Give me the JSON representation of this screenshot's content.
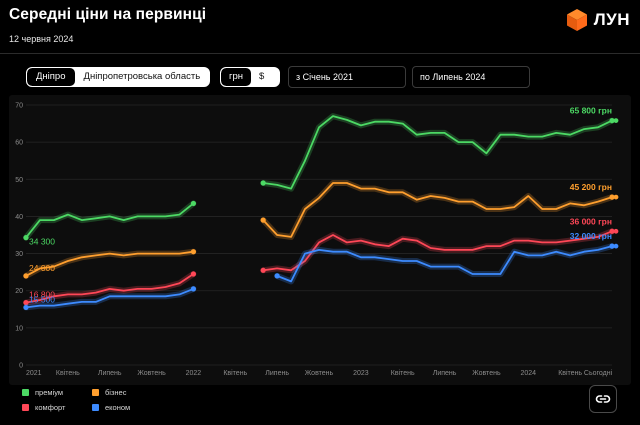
{
  "header": {
    "title": "Середні ціни на первинці",
    "date": "12 червня 2024",
    "logo_text": "ЛУН"
  },
  "controls": {
    "city_options": [
      "Дніпро",
      "Дніпропетровська область"
    ],
    "currency_options": [
      "грн",
      "$"
    ],
    "date_from": "з  Січень 2021",
    "date_to": "по  Липень 2024"
  },
  "chart_data": {
    "type": "line",
    "y_axis": {
      "min": 0,
      "max": 70,
      "ticks": [
        0,
        10,
        20,
        30,
        40,
        50,
        60,
        70
      ]
    },
    "x_axis": {
      "ticks": [
        {
          "label": "2021",
          "x": 0
        },
        {
          "label": "Квітень",
          "x": 3
        },
        {
          "label": "Липень",
          "x": 6
        },
        {
          "label": "Жовтень",
          "x": 9
        },
        {
          "label": "2022",
          "x": 12
        },
        {
          "label": "Квітень",
          "x": 15
        },
        {
          "label": "Липень",
          "x": 18
        },
        {
          "label": "Жовтень",
          "x": 21
        },
        {
          "label": "2023",
          "x": 24
        },
        {
          "label": "Квітень",
          "x": 27
        },
        {
          "label": "Липень",
          "x": 30
        },
        {
          "label": "Жовтень",
          "x": 33
        },
        {
          "label": "2024",
          "x": 36
        },
        {
          "label": "Квітень",
          "x": 39
        },
        {
          "label": "Сьогодні",
          "x": 41
        }
      ]
    },
    "series": [
      {
        "name": "преміум",
        "color": "#4cd964",
        "segments": [
          {
            "x0": 0,
            "values": [
              34.3,
              39,
              39,
              40.5,
              39,
              39.5,
              40,
              39,
              40,
              40,
              40,
              40.5,
              43.5
            ]
          },
          {
            "x0": 17,
            "values": [
              49,
              48.5,
              47.5,
              55,
              64,
              67,
              66,
              64.5,
              65.5,
              65.5,
              65,
              62,
              62.5,
              62.5,
              60,
              60,
              57,
              62,
              62,
              61.5,
              61.5,
              62.5,
              62,
              63.5,
              64,
              65.8
            ]
          }
        ],
        "dashed_end": 65.8,
        "start_label": "34 300",
        "end_label": "65 800 грн"
      },
      {
        "name": "бізнес",
        "color": "#ff9f2e",
        "segments": [
          {
            "x0": 0,
            "values": [
              24,
              26,
              26.5,
              28,
              29,
              29.5,
              30,
              29.5,
              30,
              30,
              30,
              30,
              30.5
            ]
          },
          {
            "x0": 17,
            "values": [
              39,
              35,
              34.5,
              42,
              45,
              49,
              49,
              47.5,
              47.5,
              46.5,
              46.5,
              44.5,
              45.5,
              45,
              44,
              44,
              42,
              42,
              42.5,
              45.5,
              42,
              42,
              43.5,
              43,
              44,
              45.2
            ]
          }
        ],
        "dashed_end": 45.2,
        "start_label": "24 000",
        "end_label": "45 200 грн"
      },
      {
        "name": "комфорт",
        "color": "#ff4757",
        "segments": [
          {
            "x0": 0,
            "values": [
              16.8,
              17.5,
              18.5,
              19,
              19,
              19.5,
              20.5,
              20,
              20.5,
              20.5,
              21,
              22,
              24.5
            ]
          },
          {
            "x0": 17,
            "values": [
              25.5,
              26,
              25.5,
              28,
              33,
              35,
              33,
              33.5,
              32.5,
              32,
              34,
              33.5,
              31.5,
              31,
              31,
              31,
              32,
              32,
              33.5,
              33.5,
              33,
              33,
              33.5,
              34,
              34.5,
              36
            ]
          }
        ],
        "dashed_end": 36,
        "start_label": "16 800",
        "end_label": "36 000 грн"
      },
      {
        "name": "економ",
        "color": "#3d8bff",
        "segments": [
          {
            "x0": 0,
            "values": [
              15.5,
              16,
              16,
              16.5,
              17,
              17,
              18.5,
              18.5,
              18.5,
              18.5,
              18.5,
              19,
              20.5
            ]
          },
          {
            "x0": 18,
            "values": [
              24,
              22.5,
              30,
              31,
              30.5,
              30.5,
              29,
              29,
              28.5,
              28,
              28,
              26.5,
              26.5,
              26.5,
              24.5,
              24.5,
              24.5,
              30.5,
              29.5,
              29.5,
              30.5,
              29.5,
              30.5,
              31,
              32
            ]
          }
        ],
        "dashed_end": 32,
        "start_label": "15 500",
        "end_label": "32 000 грн"
      }
    ]
  },
  "legend": [
    {
      "label": "преміум",
      "color": "#4cd964"
    },
    {
      "label": "бізнес",
      "color": "#ff9f2e"
    },
    {
      "label": "комфорт",
      "color": "#ff4757"
    },
    {
      "label": "економ",
      "color": "#3d8bff"
    }
  ]
}
